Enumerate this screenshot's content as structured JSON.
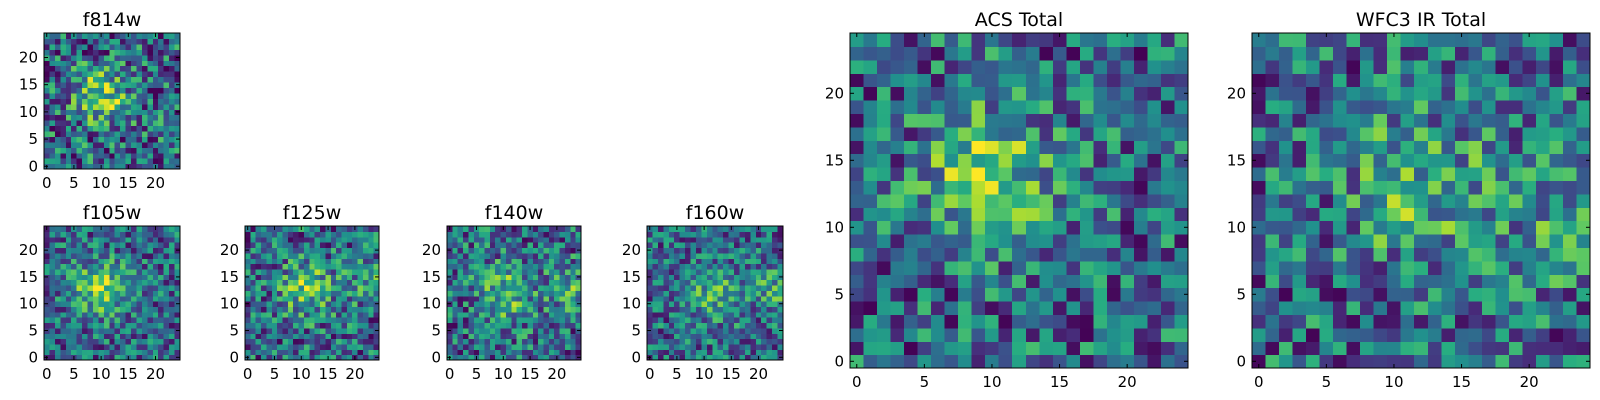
{
  "chart_data": [
    {
      "type": "heatmap",
      "title": "f814w",
      "grid_size": 25,
      "colormap": "viridis",
      "source_center": [
        10,
        13
      ],
      "source_sigma": 3.5,
      "source_amplitude": 0.45,
      "noise": 0.55,
      "seed": 11,
      "xticks": [
        0,
        5,
        10,
        15,
        20
      ],
      "yticks": [
        0,
        5,
        10,
        15,
        20
      ]
    },
    {
      "type": "heatmap",
      "title": "f105w",
      "grid_size": 25,
      "colormap": "viridis",
      "source_center": [
        10,
        13
      ],
      "source_sigma": 3.5,
      "source_amplitude": 0.45,
      "noise": 0.45,
      "seed": 23,
      "xticks": [
        0,
        5,
        10,
        15,
        20
      ],
      "yticks": [
        0,
        5,
        10,
        15,
        20
      ]
    },
    {
      "type": "heatmap",
      "title": "f125w",
      "grid_size": 25,
      "colormap": "viridis",
      "source_center": [
        11,
        13
      ],
      "source_sigma": 3.8,
      "source_amplitude": 0.35,
      "edge_source": [
        24,
        14
      ],
      "noise": 0.5,
      "seed": 37,
      "xticks": [
        0,
        5,
        10,
        15,
        20
      ],
      "yticks": [
        0,
        5,
        10,
        15,
        20
      ]
    },
    {
      "type": "heatmap",
      "title": "f140w",
      "grid_size": 25,
      "colormap": "viridis",
      "source_center": [
        11,
        12
      ],
      "source_sigma": 4,
      "source_amplitude": 0.3,
      "edge_source": [
        24,
        13
      ],
      "noise": 0.5,
      "seed": 41,
      "xticks": [
        0,
        5,
        10,
        15,
        20
      ],
      "yticks": [
        0,
        5,
        10,
        15,
        20
      ]
    },
    {
      "type": "heatmap",
      "title": "f160w",
      "grid_size": 25,
      "colormap": "viridis",
      "source_center": [
        12,
        12
      ],
      "source_sigma": 4,
      "source_amplitude": 0.25,
      "edge_source": [
        24,
        13
      ],
      "noise": 0.45,
      "seed": 53,
      "xticks": [
        0,
        5,
        10,
        15,
        20
      ],
      "yticks": [
        0,
        5,
        10,
        15,
        20
      ]
    },
    {
      "type": "heatmap",
      "title": "ACS Total",
      "grid_size": 25,
      "colormap": "viridis",
      "source_center": [
        10,
        14
      ],
      "source_sigma": 3.5,
      "source_amplitude": 0.4,
      "noise": 0.5,
      "seed": 67,
      "xticks": [
        0,
        5,
        10,
        15,
        20
      ],
      "yticks": [
        0,
        5,
        10,
        15,
        20
      ]
    },
    {
      "type": "heatmap",
      "title": "WFC3 IR Total",
      "grid_size": 25,
      "colormap": "viridis",
      "source_center": [
        12,
        13
      ],
      "source_sigma": 4,
      "source_amplitude": 0.3,
      "edge_source": [
        24,
        10
      ],
      "noise": 0.5,
      "seed": 79,
      "xticks": [
        0,
        5,
        10,
        15,
        20
      ],
      "yticks": [
        0,
        5,
        10,
        15,
        20
      ]
    }
  ]
}
